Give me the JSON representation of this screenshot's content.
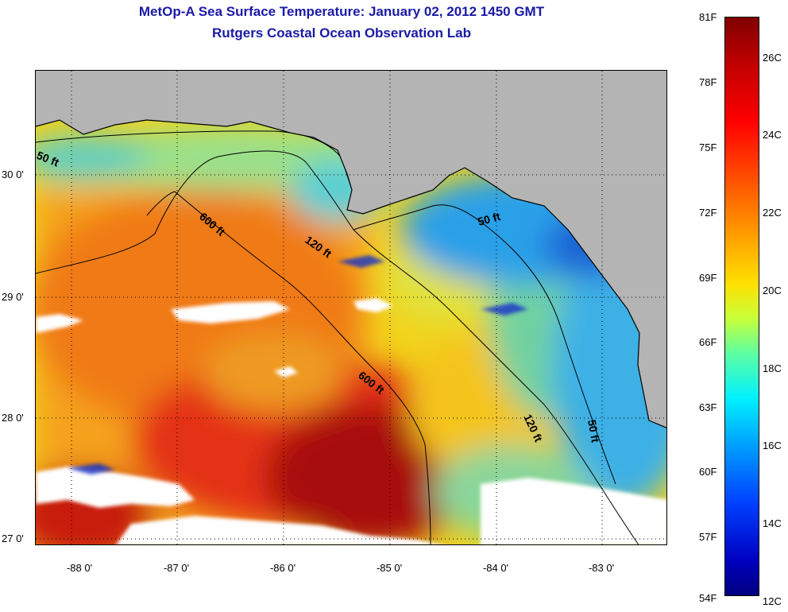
{
  "header": {
    "title": "MetOp-A Sea Surface Temperature:  January 02, 2012 1450 GMT",
    "subtitle": "Rutgers Coastal Ocean Observation Lab"
  },
  "map": {
    "lat_ticks": [
      "30 0'",
      "29 0'",
      "28 0'",
      "27 0'"
    ],
    "lon_ticks": [
      "-88 0'",
      "-87 0'",
      "-86 0'",
      "-85 0'",
      "-84 0'",
      "-83 0'"
    ],
    "isobaths": [
      {
        "label": "50 ft"
      },
      {
        "label": "600 ft"
      },
      {
        "label": "120 ft"
      },
      {
        "label": "50 ft"
      },
      {
        "label": "600 ft"
      },
      {
        "label": "120 ft"
      },
      {
        "label": "50 ft"
      }
    ],
    "colors": {
      "land": "#b4b4b4",
      "cloud": "#ffffff",
      "warm": "#a00000",
      "cool": "#1e90ff"
    }
  },
  "colorbar": {
    "fahrenheit": [
      "81F",
      "78F",
      "75F",
      "72F",
      "69F",
      "66F",
      "63F",
      "60F",
      "57F",
      "54F"
    ],
    "celsius": [
      "26C",
      "24C",
      "22C",
      "20C",
      "18C",
      "16C",
      "14C",
      "12C"
    ],
    "colormap": "jet",
    "range_c": [
      12,
      27.2
    ]
  }
}
